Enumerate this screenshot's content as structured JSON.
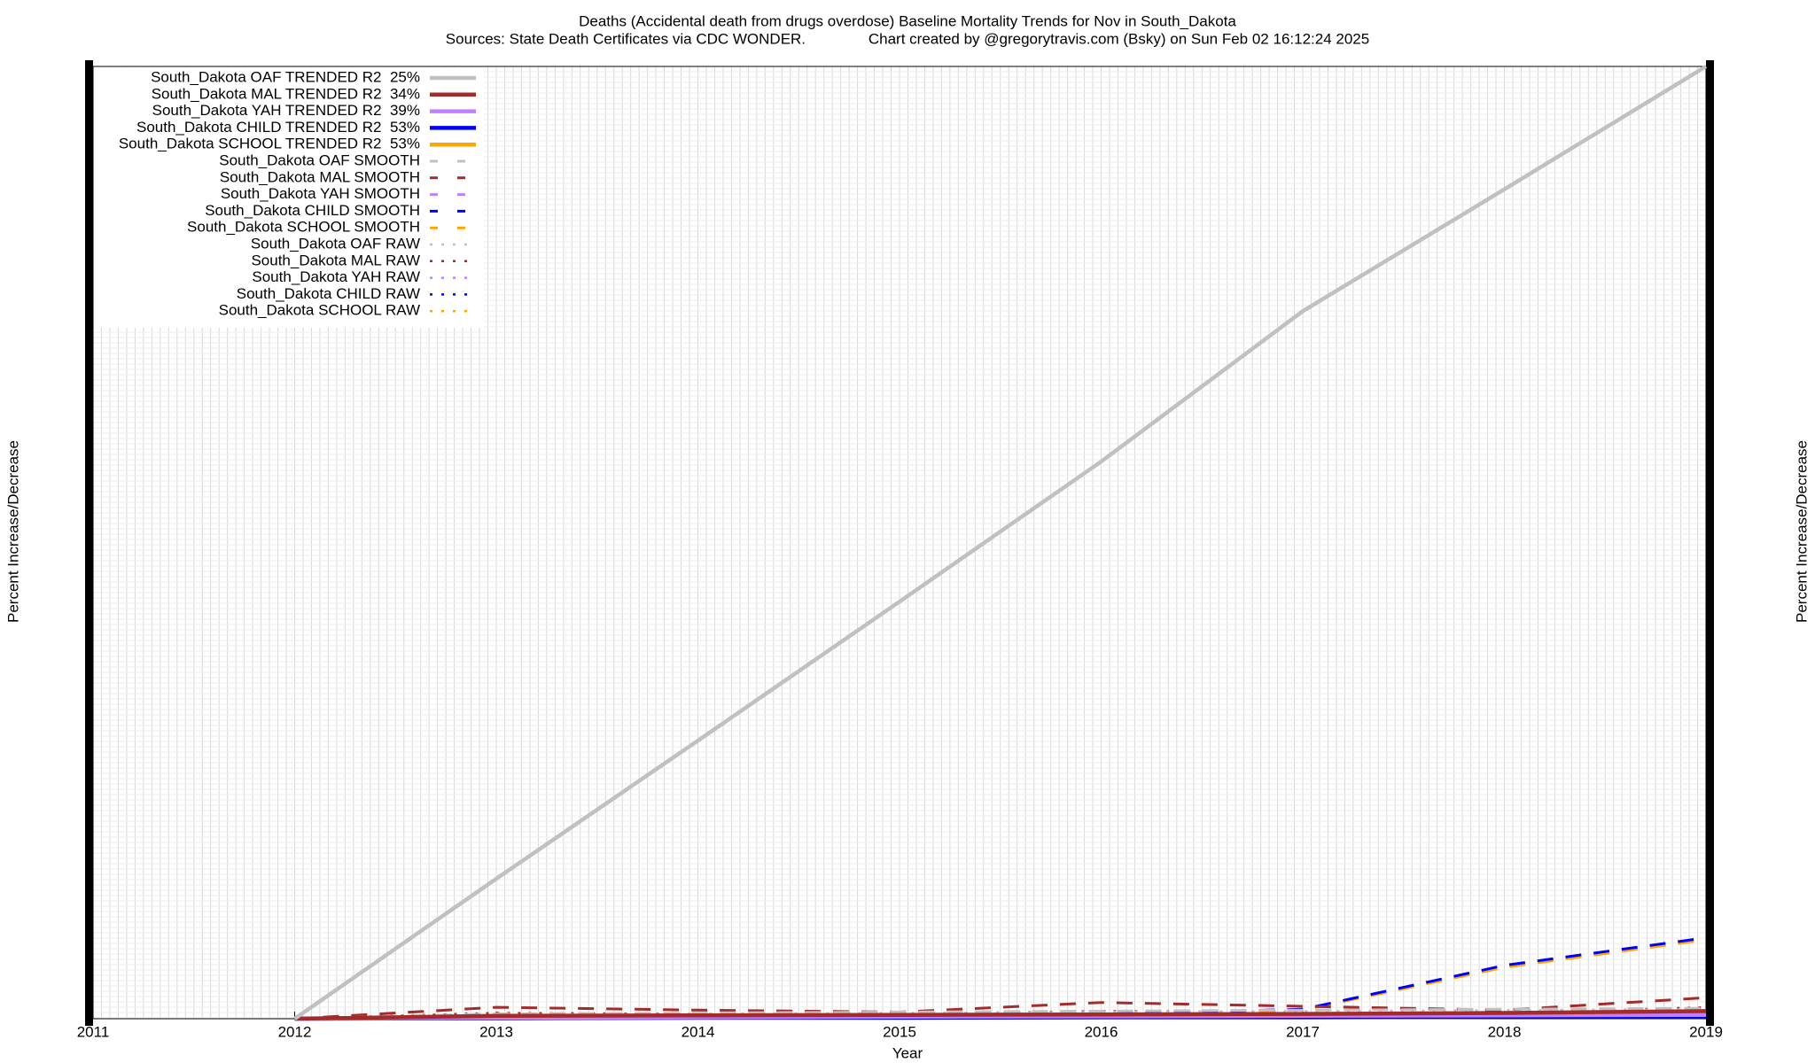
{
  "chart_data": {
    "type": "line",
    "title": "Deaths (Accidental death from drugs overdose)  Baseline Mortality Trends for Nov in South_Dakota",
    "subtitle": "Sources: State Death Certificates via CDC WONDER.               Chart created by @gregorytravis.com (Bsky) on Sun Feb 02 16:12:24 2025",
    "xlabel": "Year",
    "ylabel": "Percent Increase/Decrease",
    "y2label": "Percent Increase/Decrease",
    "x": [
      2012,
      2013,
      2014,
      2015,
      2016,
      2017,
      2018,
      2019
    ],
    "xlim": [
      2011,
      2019
    ],
    "xticks": [
      2011,
      2012,
      2013,
      2014,
      2015,
      2016,
      2017,
      2018,
      2019
    ],
    "ylim": [
      0,
      100
    ],
    "grid": true,
    "legend": "top-left",
    "series": [
      {
        "name": "South_Dakota OAF TRENDED R2  25%",
        "color": "#c0c0c0",
        "dash": "solid",
        "values": [
          0,
          14.7,
          29.2,
          43.8,
          58.5,
          74.3,
          87.1,
          100
        ]
      },
      {
        "name": "South_Dakota MAL TRENDED R2  34%",
        "color": "#a52a2a",
        "dash": "solid",
        "values": [
          0,
          0.3,
          0.35,
          0.4,
          0.45,
          0.5,
          0.6,
          0.8
        ]
      },
      {
        "name": "South_Dakota YAH TRENDED R2  39%",
        "color": "#c080ff",
        "dash": "solid",
        "values": [
          0,
          0.1,
          0.15,
          0.2,
          0.25,
          0.3,
          0.35,
          0.4
        ]
      },
      {
        "name": "South_Dakota CHILD TRENDED R2  53%",
        "color": "#0000ff",
        "dash": "solid",
        "values": [
          0,
          0.05,
          0.1,
          0.1,
          0.15,
          0.15,
          0.2,
          0.2
        ]
      },
      {
        "name": "South_Dakota SCHOOL TRENDED R2  53%",
        "color": "#ffa500",
        "dash": "solid",
        "values": [
          0,
          0.05,
          0.1,
          0.1,
          0.15,
          0.15,
          0.2,
          0.2
        ]
      },
      {
        "name": "South_Dakota OAF SMOOTH",
        "color": "#c0c0c0",
        "dash": "dashed",
        "values": [
          0,
          0.5,
          0.6,
          0.7,
          0.8,
          0.9,
          1.0,
          1.1
        ]
      },
      {
        "name": "South_Dakota MAL SMOOTH",
        "color": "#a52a2a",
        "dash": "dashed",
        "values": [
          0,
          1.2,
          0.9,
          0.7,
          1.7,
          1.3,
          0.9,
          2.2
        ]
      },
      {
        "name": "South_Dakota YAH SMOOTH",
        "color": "#c080ff",
        "dash": "dashed",
        "values": [
          0,
          0.3,
          0.3,
          0.4,
          0.4,
          0.5,
          0.5,
          0.6
        ]
      },
      {
        "name": "South_Dakota CHILD SMOOTH",
        "color": "#0000ff",
        "dash": "dashed",
        "values": [
          0,
          0.2,
          0.3,
          0.4,
          0.5,
          1.0,
          5.6,
          8.5
        ]
      },
      {
        "name": "South_Dakota SCHOOL SMOOTH",
        "color": "#ffa500",
        "dash": "dashed",
        "values": [
          0,
          0.2,
          0.3,
          0.4,
          0.5,
          0.9,
          5.4,
          8.3
        ]
      },
      {
        "name": "South_Dakota OAF RAW",
        "color": "#c0c0c0",
        "dash": "dotted",
        "values": [
          0,
          0.4,
          0.5,
          0.6,
          0.7,
          0.8,
          0.9,
          1.0
        ]
      },
      {
        "name": "South_Dakota MAL RAW",
        "color": "#a52a2a",
        "dash": "dotted",
        "values": [
          0,
          0.6,
          0.5,
          0.5,
          0.8,
          0.7,
          0.6,
          1.2
        ]
      },
      {
        "name": "South_Dakota YAH RAW",
        "color": "#c080ff",
        "dash": "dotted",
        "values": [
          0,
          0.2,
          0.2,
          0.3,
          0.3,
          0.4,
          0.4,
          0.5
        ]
      },
      {
        "name": "South_Dakota CHILD RAW",
        "color": "#0000ff",
        "dash": "dotted",
        "values": [
          0,
          0.1,
          0.2,
          0.2,
          0.3,
          0.4,
          0.5,
          0.6
        ]
      },
      {
        "name": "South_Dakota SCHOOL RAW",
        "color": "#ffa500",
        "dash": "dotted",
        "values": [
          0,
          0.1,
          0.2,
          0.2,
          0.3,
          0.4,
          0.5,
          0.6
        ]
      }
    ]
  }
}
